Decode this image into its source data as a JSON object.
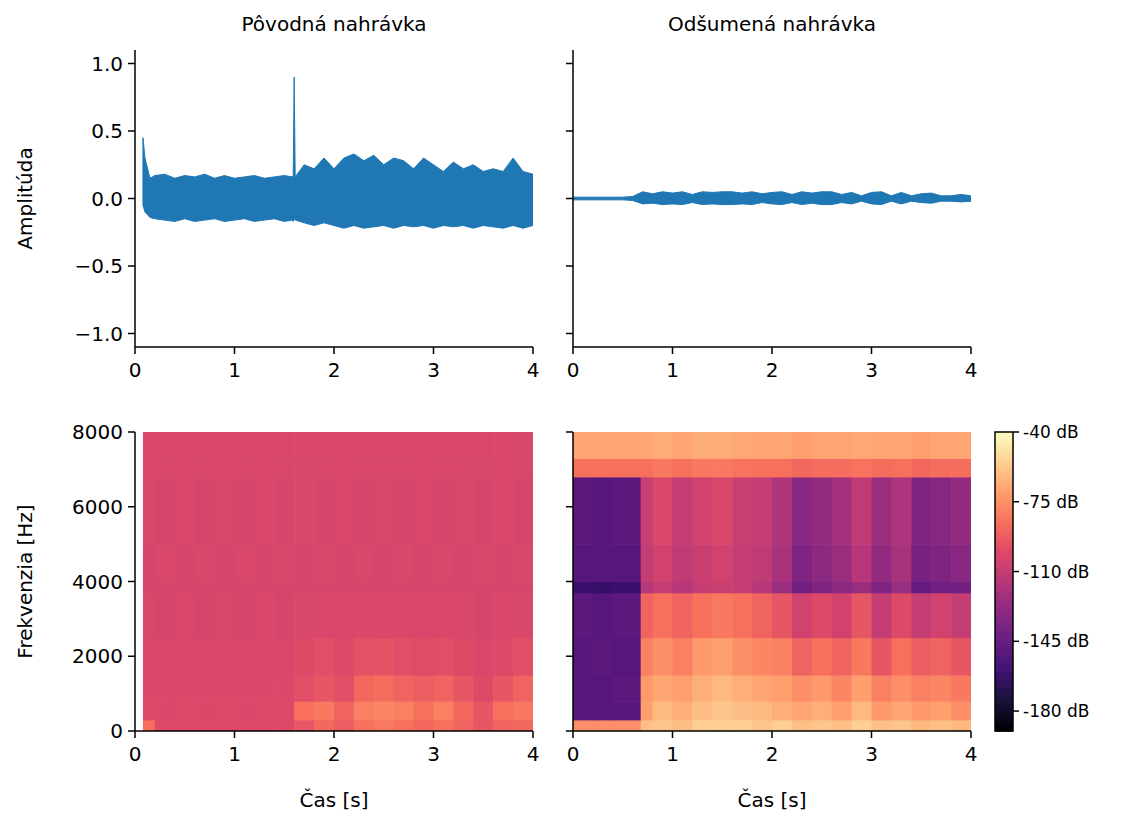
{
  "chart_data": [
    {
      "type": "area",
      "title": "Pôvodná nahrávka",
      "y_label": "Amplitúda",
      "x": [
        0.08,
        0.1,
        0.15,
        0.2,
        0.3,
        0.4,
        0.5,
        0.6,
        0.7,
        0.8,
        0.9,
        1.0,
        1.1,
        1.2,
        1.3,
        1.4,
        1.5,
        1.58,
        1.59,
        1.6,
        1.61,
        1.7,
        1.8,
        1.9,
        2.0,
        2.1,
        2.2,
        2.3,
        2.4,
        2.5,
        2.6,
        2.7,
        2.8,
        2.9,
        3.0,
        3.1,
        3.2,
        3.3,
        3.4,
        3.5,
        3.6,
        3.7,
        3.8,
        3.9,
        4.0
      ],
      "series": [
        {
          "color": "#1f77b4",
          "values": [
            0.45,
            0.3,
            0.15,
            0.17,
            0.18,
            0.15,
            0.17,
            0.16,
            0.18,
            0.15,
            0.17,
            0.15,
            0.16,
            0.17,
            0.15,
            0.16,
            0.17,
            0.16,
            0.17,
            0.9,
            0.16,
            0.25,
            0.22,
            0.3,
            0.22,
            0.3,
            0.33,
            0.28,
            0.32,
            0.25,
            0.3,
            0.28,
            0.22,
            0.3,
            0.25,
            0.2,
            0.27,
            0.22,
            0.25,
            0.2,
            0.22,
            0.2,
            0.3,
            0.2,
            0.18
          ]
        },
        {
          "color": "#1f77b4",
          "values": [
            -0.05,
            -0.1,
            -0.14,
            -0.15,
            -0.16,
            -0.17,
            -0.15,
            -0.17,
            -0.16,
            -0.15,
            -0.17,
            -0.16,
            -0.15,
            -0.17,
            -0.16,
            -0.15,
            -0.17,
            -0.16,
            -0.17,
            -0.15,
            -0.16,
            -0.18,
            -0.2,
            -0.18,
            -0.2,
            -0.22,
            -0.2,
            -0.22,
            -0.21,
            -0.2,
            -0.22,
            -0.2,
            -0.21,
            -0.2,
            -0.22,
            -0.2,
            -0.21,
            -0.2,
            -0.22,
            -0.2,
            -0.21,
            -0.22,
            -0.2,
            -0.22,
            -0.2
          ]
        }
      ],
      "xlim": [
        0,
        4
      ],
      "ylim": [
        -1.1,
        1.1
      ],
      "xticks": [
        0,
        1,
        2,
        3,
        4
      ],
      "yticks": [
        {
          "value": -1,
          "label": "−1.0"
        },
        {
          "value": -0.5,
          "label": "−0.5"
        },
        {
          "value": 0,
          "label": "0.0"
        },
        {
          "value": 0.5,
          "label": "0.5"
        },
        {
          "value": 1,
          "label": "1.0"
        }
      ]
    },
    {
      "type": "area",
      "title": "Odšumená nahrávka",
      "x": [
        0,
        0.1,
        0.2,
        0.3,
        0.4,
        0.5,
        0.6,
        0.7,
        0.8,
        0.9,
        1.0,
        1.1,
        1.2,
        1.3,
        1.4,
        1.5,
        1.6,
        1.7,
        1.8,
        1.9,
        2.0,
        2.1,
        2.2,
        2.3,
        2.4,
        2.5,
        2.6,
        2.7,
        2.8,
        2.9,
        3.0,
        3.1,
        3.2,
        3.3,
        3.4,
        3.5,
        3.6,
        3.7,
        3.8,
        3.9,
        4.0
      ],
      "series": [
        {
          "color": "#1f77b4",
          "values": [
            0.01,
            0.01,
            0.01,
            0.01,
            0.01,
            0.01,
            0.015,
            0.05,
            0.035,
            0.05,
            0.04,
            0.05,
            0.03,
            0.05,
            0.045,
            0.05,
            0.05,
            0.04,
            0.05,
            0.035,
            0.045,
            0.05,
            0.03,
            0.05,
            0.04,
            0.05,
            0.05,
            0.03,
            0.045,
            0.02,
            0.045,
            0.05,
            0.02,
            0.045,
            0.02,
            0.035,
            0.04,
            0.02,
            0.02,
            0.03,
            0.02
          ]
        },
        {
          "color": "#1f77b4",
          "values": [
            -0.01,
            -0.01,
            -0.01,
            -0.01,
            -0.01,
            -0.01,
            -0.015,
            -0.04,
            -0.035,
            -0.045,
            -0.04,
            -0.045,
            -0.03,
            -0.045,
            -0.04,
            -0.045,
            -0.045,
            -0.04,
            -0.045,
            -0.03,
            -0.04,
            -0.045,
            -0.03,
            -0.045,
            -0.035,
            -0.045,
            -0.045,
            -0.03,
            -0.04,
            -0.02,
            -0.04,
            -0.045,
            -0.02,
            -0.04,
            -0.02,
            -0.03,
            -0.035,
            -0.02,
            -0.02,
            -0.025,
            -0.02
          ]
        }
      ],
      "xlim": [
        0,
        4
      ],
      "ylim": [
        -1.1,
        1.1
      ],
      "xticks": [
        0,
        1,
        2,
        3,
        4
      ],
      "yticks": [
        -1,
        -0.5,
        0,
        0.5,
        1
      ],
      "tick_labels": "x"
    },
    {
      "type": "heatmap",
      "x_label": "Čas [s]",
      "y_label": "Frekvenzia [Hz]",
      "x_bins": [
        0.08,
        0.2,
        0.4,
        0.6,
        0.8,
        1.0,
        1.2,
        1.4,
        1.6,
        1.8,
        2.0,
        2.2,
        2.4,
        2.6,
        2.8,
        3.0,
        3.2,
        3.4,
        3.6,
        3.8,
        4.0
      ],
      "y_bins": [
        0,
        300,
        800,
        1500,
        2500,
        3700,
        4000,
        5000,
        6800,
        7300,
        8000
      ],
      "values": [
        [
          -85,
          -100,
          -100,
          -100,
          -100,
          -100,
          -100,
          -100,
          -95,
          -88,
          -92,
          -85,
          -82,
          -85,
          -88,
          -85,
          -90,
          -95,
          -90,
          -88
        ],
        [
          -100,
          -101,
          -100,
          -101,
          -100,
          -101,
          -100,
          -100,
          -85,
          -82,
          -90,
          -80,
          -78,
          -80,
          -85,
          -80,
          -88,
          -95,
          -85,
          -82
        ],
        [
          -101,
          -101,
          -101,
          -101,
          -101,
          -101,
          -101,
          -101,
          -98,
          -95,
          -98,
          -88,
          -86,
          -90,
          -92,
          -90,
          -95,
          -100,
          -95,
          -90
        ],
        [
          -102,
          -102,
          -102,
          -102,
          -102,
          -102,
          -102,
          -102,
          -100,
          -98,
          -100,
          -97,
          -96,
          -98,
          -99,
          -98,
          -100,
          -102,
          -100,
          -98
        ],
        [
          -102,
          -103,
          -102,
          -103,
          -102,
          -103,
          -102,
          -103,
          -102,
          -102,
          -102,
          -101,
          -101,
          -102,
          -102,
          -102,
          -102,
          -103,
          -102,
          -102
        ],
        [
          -103,
          -103,
          -103,
          -103,
          -103,
          -103,
          -103,
          -103,
          -103,
          -103,
          -103,
          -103,
          -103,
          -103,
          -103,
          -103,
          -103,
          -103,
          -103,
          -103
        ],
        [
          -103,
          -102,
          -103,
          -102,
          -103,
          -102,
          -103,
          -102,
          -103,
          -102,
          -103,
          -102,
          -103,
          -102,
          -103,
          -102,
          -103,
          -102,
          -103,
          -102
        ],
        [
          -102,
          -103,
          -102,
          -103,
          -102,
          -103,
          -102,
          -103,
          -102,
          -103,
          -102,
          -103,
          -102,
          -103,
          -102,
          -103,
          -102,
          -103,
          -102,
          -103
        ],
        [
          -102,
          -102,
          -102,
          -102,
          -102,
          -102,
          -102,
          -102,
          -102,
          -102,
          -102,
          -102,
          -102,
          -102,
          -102,
          -102,
          -102,
          -102,
          -102,
          -102
        ],
        [
          -101,
          -102,
          -101,
          -102,
          -101,
          -102,
          -101,
          -102,
          -101,
          -102,
          -101,
          -102,
          -101,
          -102,
          -101,
          -102,
          -101,
          -102,
          -101,
          -102
        ]
      ],
      "color_range": [
        -190,
        -40
      ],
      "xlim": [
        0,
        4
      ],
      "ylim": [
        0,
        8000
      ],
      "xticks": [
        0,
        1,
        2,
        3,
        4
      ],
      "yticks": [
        0,
        2000,
        4000,
        6000,
        8000
      ]
    },
    {
      "type": "heatmap",
      "x_label": "Čas [s]",
      "x_bins": [
        0,
        0.2,
        0.4,
        0.68,
        0.8,
        1.0,
        1.2,
        1.4,
        1.6,
        1.8,
        2.0,
        2.2,
        2.4,
        2.6,
        2.8,
        3.0,
        3.2,
        3.4,
        3.6,
        3.8,
        4.0
      ],
      "y_bins": [
        0,
        300,
        800,
        1500,
        2500,
        3700,
        4000,
        5000,
        6800,
        7300,
        8000
      ],
      "values": [
        [
          -75,
          -75,
          -75,
          -60,
          -58,
          -60,
          -55,
          -55,
          -55,
          -58,
          -55,
          -60,
          -58,
          -60,
          -55,
          -60,
          -58,
          -62,
          -60,
          -62
        ],
        [
          -150,
          -150,
          -150,
          -70,
          -62,
          -65,
          -60,
          -58,
          -60,
          -62,
          -65,
          -68,
          -65,
          -70,
          -62,
          -72,
          -68,
          -72,
          -70,
          -75
        ],
        [
          -150,
          -150,
          -148,
          -72,
          -68,
          -70,
          -65,
          -62,
          -65,
          -68,
          -70,
          -75,
          -72,
          -78,
          -70,
          -80,
          -75,
          -80,
          -78,
          -82
        ],
        [
          -150,
          -148,
          -150,
          -80,
          -75,
          -80,
          -72,
          -70,
          -75,
          -78,
          -80,
          -90,
          -85,
          -90,
          -82,
          -95,
          -85,
          -92,
          -90,
          -95
        ],
        [
          -148,
          -150,
          -148,
          -90,
          -85,
          -90,
          -85,
          -82,
          -85,
          -90,
          -95,
          -105,
          -100,
          -105,
          -95,
          -110,
          -100,
          -110,
          -105,
          -110
        ],
        [
          -160,
          -162,
          -160,
          -115,
          -110,
          -115,
          -110,
          -108,
          -110,
          -115,
          -125,
          -140,
          -135,
          -130,
          -125,
          -135,
          -125,
          -145,
          -140,
          -140
        ],
        [
          -150,
          -150,
          -150,
          -110,
          -105,
          -112,
          -108,
          -105,
          -110,
          -112,
          -120,
          -135,
          -130,
          -125,
          -115,
          -128,
          -120,
          -138,
          -135,
          -132
        ],
        [
          -148,
          -150,
          -148,
          -108,
          -102,
          -110,
          -105,
          -102,
          -108,
          -110,
          -118,
          -132,
          -128,
          -122,
          -112,
          -125,
          -118,
          -135,
          -132,
          -128
        ],
        [
          -85,
          -85,
          -85,
          -85,
          -82,
          -85,
          -82,
          -82,
          -84,
          -85,
          -85,
          -88,
          -86,
          -86,
          -84,
          -86,
          -85,
          -88,
          -86,
          -86
        ],
        [
          -68,
          -68,
          -68,
          -68,
          -66,
          -68,
          -66,
          -66,
          -67,
          -68,
          -68,
          -70,
          -68,
          -68,
          -67,
          -68,
          -68,
          -70,
          -68,
          -68
        ]
      ],
      "color_range": [
        -190,
        -40
      ],
      "colorbar_ticks": [
        {
          "value": -40,
          "label": "-40 dB"
        },
        {
          "value": -75,
          "label": "-75 dB"
        },
        {
          "value": -110,
          "label": "-110 dB"
        },
        {
          "value": -145,
          "label": "-145 dB"
        },
        {
          "value": -180,
          "label": "-180 dB"
        }
      ],
      "xlim": [
        0,
        4
      ],
      "ylim": [
        0,
        8000
      ],
      "xticks": [
        0,
        1,
        2,
        3,
        4
      ],
      "yticks": [
        0,
        2000,
        4000,
        6000,
        8000
      ],
      "tick_labels": "x"
    }
  ]
}
